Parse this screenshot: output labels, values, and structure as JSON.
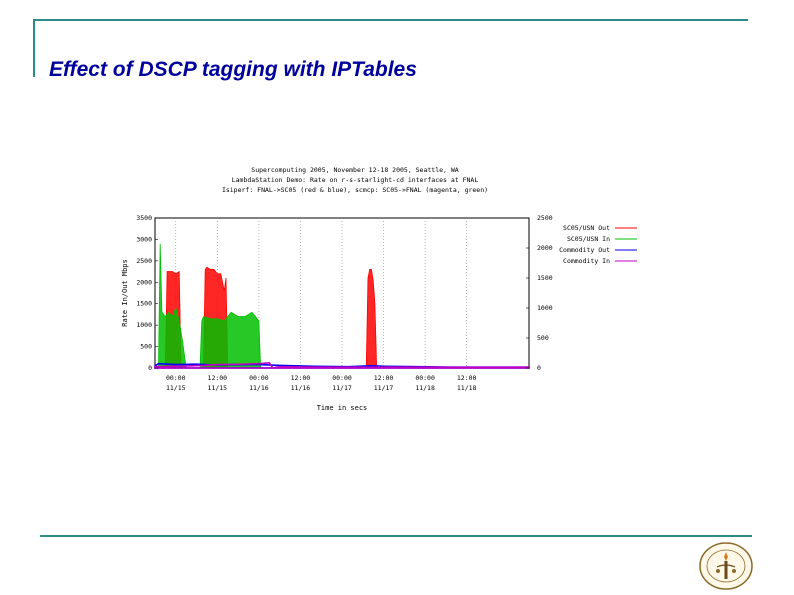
{
  "slide": {
    "title": "Effect of DSCP tagging with IPTables"
  },
  "colors": {
    "frame": "#2c8a8a",
    "title": "#00009c",
    "grid": "#888888"
  },
  "chart_data": {
    "type": "area",
    "title_lines": [
      "Supercomputing 2005, November 12-18 2005, Seattle, WA",
      "LambdaStation Demo: Rate on r-s-starlight-cd interfaces at FNAL",
      "Isiperf: FNAL->SC05 (red & blue), scmcp: SC05->FNAL (magenta, green)"
    ],
    "ylabel": "Rate In/Out Mbps",
    "xlabel": "Time in secs",
    "ylim": [
      0,
      3500
    ],
    "y_ticks": [
      "3500",
      "3000",
      "2500",
      "2000",
      "1500",
      "1000",
      "500",
      "0"
    ],
    "y2lim": [
      0,
      2500
    ],
    "y2_ticks": [
      "2500",
      "2000",
      "1500",
      "1000",
      "500",
      "0"
    ],
    "x_ticks": [
      {
        "time": "00:00",
        "date": "11/15"
      },
      {
        "time": "12:00",
        "date": "11/15"
      },
      {
        "time": "00:00",
        "date": "11/16"
      },
      {
        "time": "12:00",
        "date": "11/16"
      },
      {
        "time": "00:00",
        "date": "11/17"
      },
      {
        "time": "12:00",
        "date": "11/17"
      },
      {
        "time": "00:00",
        "date": "11/18"
      },
      {
        "time": "12:00",
        "date": "11/18"
      }
    ],
    "x_range_hours": [
      -6,
      102
    ],
    "grid": true,
    "legend_position": "right",
    "series": [
      {
        "name": "SC05/USN Out",
        "color": "#ff0000",
        "points": [
          [
            -3,
            0
          ],
          [
            -2.5,
            2250
          ],
          [
            -1,
            2250
          ],
          [
            0,
            2200
          ],
          [
            1,
            2250
          ],
          [
            1.5,
            0
          ],
          [
            8,
            0
          ],
          [
            8.5,
            2300
          ],
          [
            9,
            2350
          ],
          [
            10,
            2300
          ],
          [
            11,
            2300
          ],
          [
            12,
            2200
          ],
          [
            13,
            2200
          ],
          [
            14,
            1800
          ],
          [
            14.5,
            2100
          ],
          [
            15,
            0
          ],
          [
            55,
            0
          ],
          [
            55.5,
            2100
          ],
          [
            56,
            2300
          ],
          [
            56.5,
            2300
          ],
          [
            57,
            2050
          ],
          [
            57.5,
            1500
          ],
          [
            58,
            0
          ]
        ]
      },
      {
        "name": "SC05/USN In",
        "color": "#00c000",
        "points": [
          [
            -5,
            0
          ],
          [
            -4.5,
            2900
          ],
          [
            -4,
            1300
          ],
          [
            -3,
            1200
          ],
          [
            -2,
            1300
          ],
          [
            -1,
            1200
          ],
          [
            0,
            1400
          ],
          [
            1,
            1100
          ],
          [
            2,
            600
          ],
          [
            3,
            0
          ],
          [
            7,
            0
          ],
          [
            7.5,
            1100
          ],
          [
            8,
            1200
          ],
          [
            10,
            1150
          ],
          [
            12,
            1150
          ],
          [
            14,
            1100
          ],
          [
            16,
            1300
          ],
          [
            18,
            1200
          ],
          [
            20,
            1200
          ],
          [
            21,
            1250
          ],
          [
            22,
            1300
          ],
          [
            23,
            1200
          ],
          [
            24,
            1100
          ],
          [
            24.5,
            0
          ]
        ]
      },
      {
        "name": "Commodity Out",
        "color": "#0000ff",
        "points": [
          [
            -6,
            50
          ],
          [
            -5,
            100
          ],
          [
            0,
            80
          ],
          [
            6,
            90
          ],
          [
            12,
            70
          ],
          [
            24,
            80
          ],
          [
            30,
            60
          ],
          [
            40,
            40
          ],
          [
            50,
            30
          ],
          [
            56,
            50
          ],
          [
            60,
            40
          ],
          [
            70,
            30
          ],
          [
            80,
            20
          ],
          [
            102,
            20
          ]
        ]
      },
      {
        "name": "Commodity In",
        "color": "#c000c0",
        "points": [
          [
            -6,
            30
          ],
          [
            0,
            40
          ],
          [
            8,
            60
          ],
          [
            12,
            80
          ],
          [
            20,
            90
          ],
          [
            24,
            100
          ],
          [
            27,
            120
          ],
          [
            28,
            0
          ],
          [
            30,
            30
          ],
          [
            40,
            20
          ],
          [
            102,
            20
          ]
        ]
      }
    ]
  }
}
